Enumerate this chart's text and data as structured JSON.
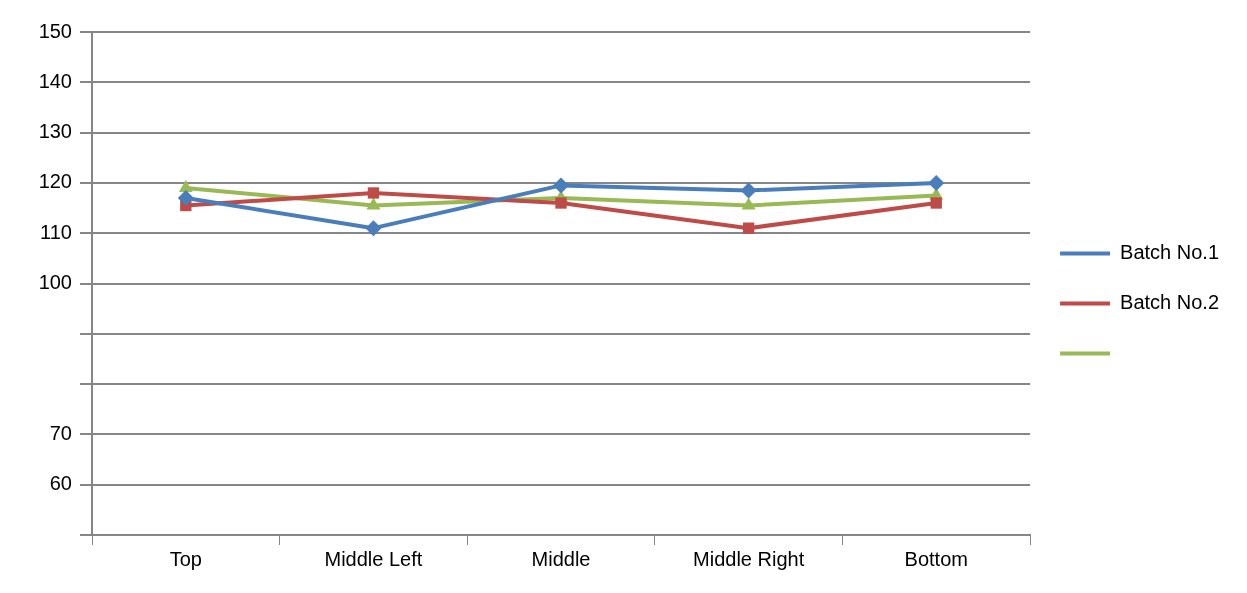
{
  "chart_data": {
    "type": "line",
    "categories": [
      "Top",
      "Middle Left",
      "Middle",
      "Middle Right",
      "Bottom"
    ],
    "series": [
      {
        "name": "Batch No.1",
        "color": "#4a7ebb",
        "marker": "diamond",
        "values": [
          117,
          111,
          119.5,
          118.5,
          120
        ]
      },
      {
        "name": "Batch No.2",
        "color": "#be4b48",
        "marker": "square",
        "values": [
          115.5,
          118,
          116,
          111,
          116
        ]
      },
      {
        "color": "#98b954",
        "marker": "triangle",
        "values": [
          119,
          115.5,
          117,
          115.5,
          117.5
        ]
      }
    ],
    "ylim": [
      50,
      150
    ],
    "yticks": [
      150,
      140,
      130,
      120,
      110,
      100,
      {
        "value": 90,
        "label": null
      },
      {
        "value": 80,
        "label": null
      },
      70,
      60,
      {
        "value": 50,
        "label": null
      }
    ],
    "grid": "y",
    "legend": "right",
    "line_style": "solid"
  }
}
